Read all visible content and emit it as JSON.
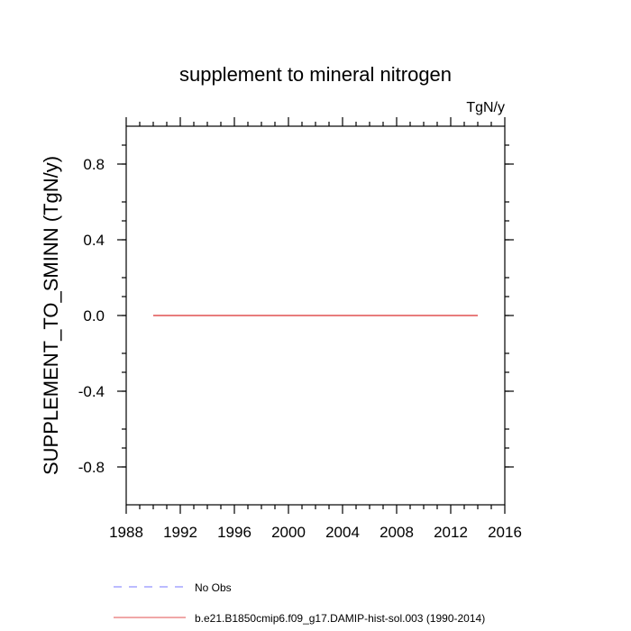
{
  "chart_data": {
    "type": "line",
    "title": "supplement to mineral nitrogen",
    "units_label": "TgN/y",
    "xlabel": "",
    "ylabel": "SUPPLEMENT_TO_SMINN  (TgN/y)",
    "xlim": [
      1988,
      2016
    ],
    "ylim": [
      -1.0,
      1.0
    ],
    "x_ticks": [
      1988,
      1992,
      1996,
      2000,
      2004,
      2008,
      2012,
      2016
    ],
    "x_tick_labels": [
      "1988",
      "1992",
      "1996",
      "2000",
      "2004",
      "2008",
      "2012",
      "2016"
    ],
    "y_ticks": [
      -0.8,
      -0.4,
      0.0,
      0.4,
      0.8
    ],
    "y_tick_labels": [
      "-0.8",
      "-0.4",
      "0.0",
      "0.4",
      "0.8"
    ],
    "grid": false,
    "legend_position": "bottom",
    "series": [
      {
        "name": "No Obs",
        "color": "#7777ff",
        "line_style": "dashed",
        "x": [],
        "y": []
      },
      {
        "name": "b.e21.B1850cmip6.f09_g17.DAMIP-hist-sol.003 (1990-2014)",
        "color": "#e05050",
        "line_style": "solid",
        "x": [
          1990,
          2014
        ],
        "y": [
          0.0,
          0.0
        ]
      }
    ]
  }
}
